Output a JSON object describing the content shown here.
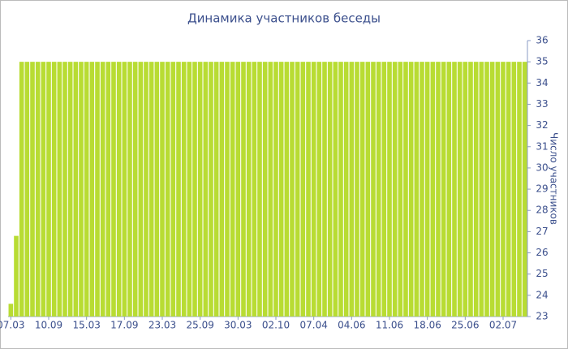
{
  "chart_data": {
    "type": "bar",
    "title": "Динамика участников беседы",
    "y_axis_label": "Число участников",
    "categories": [
      "07.03",
      null,
      null,
      null,
      null,
      null,
      null,
      "10.09",
      null,
      null,
      null,
      null,
      null,
      null,
      "15.03",
      null,
      null,
      null,
      null,
      null,
      null,
      "17.09",
      null,
      null,
      null,
      null,
      null,
      null,
      "23.03",
      null,
      null,
      null,
      null,
      null,
      null,
      "25.09",
      null,
      null,
      null,
      null,
      null,
      null,
      "30.03",
      null,
      null,
      null,
      null,
      null,
      null,
      "02.10",
      null,
      null,
      null,
      null,
      null,
      null,
      "07.04",
      null,
      null,
      null,
      null,
      null,
      null,
      "04.06",
      null,
      null,
      null,
      null,
      null,
      null,
      "11.06",
      null,
      null,
      null,
      null,
      null,
      null,
      "18.06",
      null,
      null,
      null,
      null,
      null,
      null,
      "25.06",
      null,
      null,
      null,
      null,
      null,
      null,
      "02.07",
      null,
      null,
      null,
      null
    ],
    "values": [
      23.6,
      26.8,
      35,
      35,
      35,
      35,
      35,
      35,
      35,
      35,
      35,
      35,
      35,
      35,
      35,
      35,
      35,
      35,
      35,
      35,
      35,
      35,
      35,
      35,
      35,
      35,
      35,
      35,
      35,
      35,
      35,
      35,
      35,
      35,
      35,
      35,
      35,
      35,
      35,
      35,
      35,
      35,
      35,
      35,
      35,
      35,
      35,
      35,
      35,
      35,
      35,
      35,
      35,
      35,
      35,
      35,
      35,
      35,
      35,
      35,
      35,
      35,
      35,
      35,
      35,
      35,
      35,
      35,
      35,
      35,
      35,
      35,
      35,
      35,
      35,
      35,
      35,
      35,
      35,
      35,
      35,
      35,
      35,
      35,
      35,
      35,
      35,
      35,
      35,
      35,
      35,
      35,
      35,
      35,
      35,
      35
    ],
    "color": "#b8dc33",
    "ylim": [
      23,
      36
    ],
    "yticks": [
      23,
      24,
      25,
      26,
      27,
      28,
      29,
      30,
      31,
      32,
      33,
      34,
      35,
      36
    ],
    "y_axis_side": "right"
  }
}
